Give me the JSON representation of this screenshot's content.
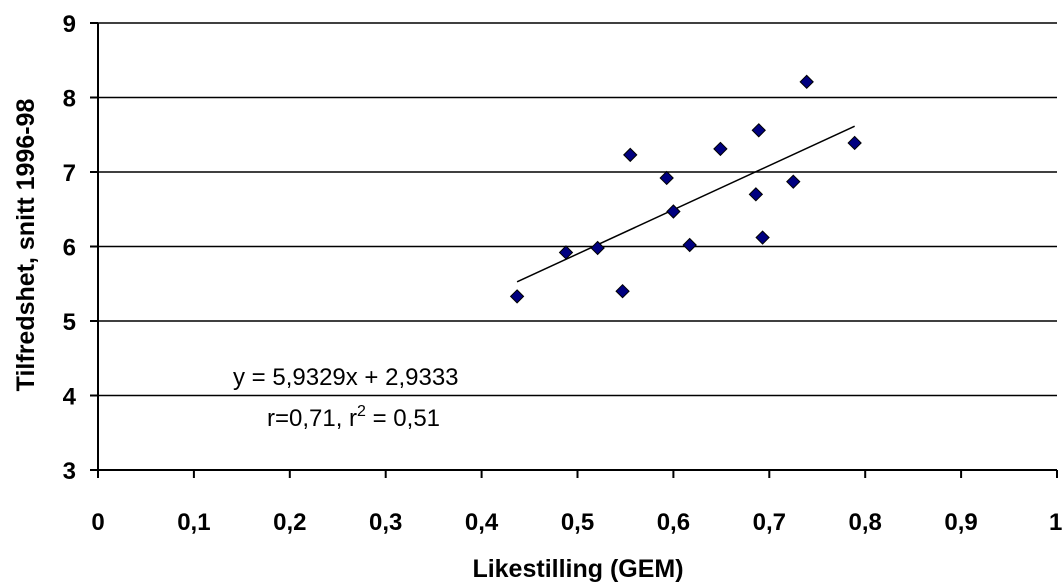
{
  "chart_data": {
    "type": "scatter",
    "xlabel": "Likestilling (GEM)",
    "ylabel": "Tilfredshet, snitt 1996-98",
    "xlim": [
      0,
      1
    ],
    "ylim": [
      3,
      9
    ],
    "x_ticks": [
      "0",
      "0,1",
      "0,2",
      "0,3",
      "0,4",
      "0,5",
      "0,6",
      "0,7",
      "0,8",
      "0,9",
      "1"
    ],
    "y_ticks": [
      "3",
      "4",
      "5",
      "6",
      "7",
      "8",
      "9"
    ],
    "grid": "horizontal",
    "legend": "none",
    "marker_color": "#000080",
    "points": [
      {
        "x": 0.437,
        "y": 5.33
      },
      {
        "x": 0.488,
        "y": 5.92
      },
      {
        "x": 0.521,
        "y": 5.98
      },
      {
        "x": 0.547,
        "y": 5.4
      },
      {
        "x": 0.555,
        "y": 7.23
      },
      {
        "x": 0.593,
        "y": 6.92
      },
      {
        "x": 0.6,
        "y": 6.47
      },
      {
        "x": 0.617,
        "y": 6.02
      },
      {
        "x": 0.649,
        "y": 7.31
      },
      {
        "x": 0.686,
        "y": 6.7
      },
      {
        "x": 0.689,
        "y": 7.56
      },
      {
        "x": 0.693,
        "y": 6.12
      },
      {
        "x": 0.725,
        "y": 6.87
      },
      {
        "x": 0.739,
        "y": 8.21
      },
      {
        "x": 0.789,
        "y": 7.39
      }
    ],
    "trendline": {
      "slope": 5.9329,
      "intercept": 2.9333,
      "x_range": [
        0.437,
        0.789
      ],
      "equation_label": "y = 5,9329x + 2,9333",
      "stats_label_r": "r=0,71, r",
      "stats_label_sup": "2",
      "stats_label_r2": " = 0,51"
    }
  }
}
